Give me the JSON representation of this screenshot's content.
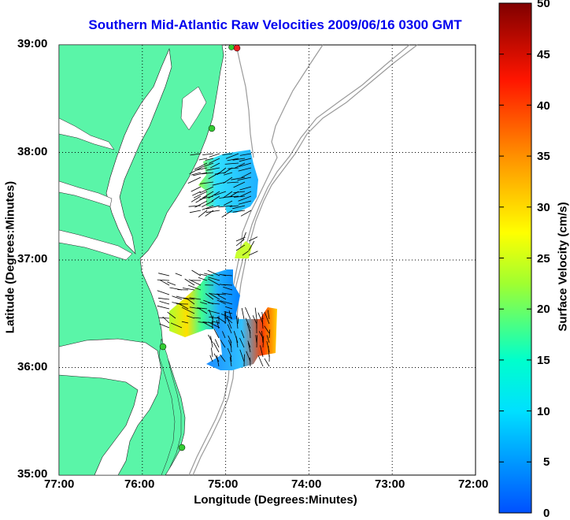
{
  "title": "Southern Mid-Atlantic Raw Velocities 2009/06/16 0300 GMT",
  "map": {
    "xlabel": "Longitude (Degrees:Minutes)",
    "ylabel": "Latitude (Degrees:Minutes)",
    "x_ticks": [
      "77:00",
      "76:00",
      "75:00",
      "74:00",
      "73:00",
      "72:00"
    ],
    "y_ticks": [
      "39:00",
      "38:00",
      "37:00",
      "36:00",
      "35:00"
    ],
    "lon_range": [
      -77,
      -72
    ],
    "lat_range": [
      35,
      39
    ],
    "grid": "dotted",
    "land_color": "#5af5a8",
    "station_color": "#33cc33",
    "highlight_station_color": "#ee2222"
  },
  "colorbar": {
    "label": "Surface Velocity (cm/s)",
    "ticks": [
      "0",
      "5",
      "10",
      "15",
      "20",
      "25",
      "30",
      "35",
      "40",
      "45",
      "50"
    ],
    "range": [
      0,
      50
    ]
  }
}
